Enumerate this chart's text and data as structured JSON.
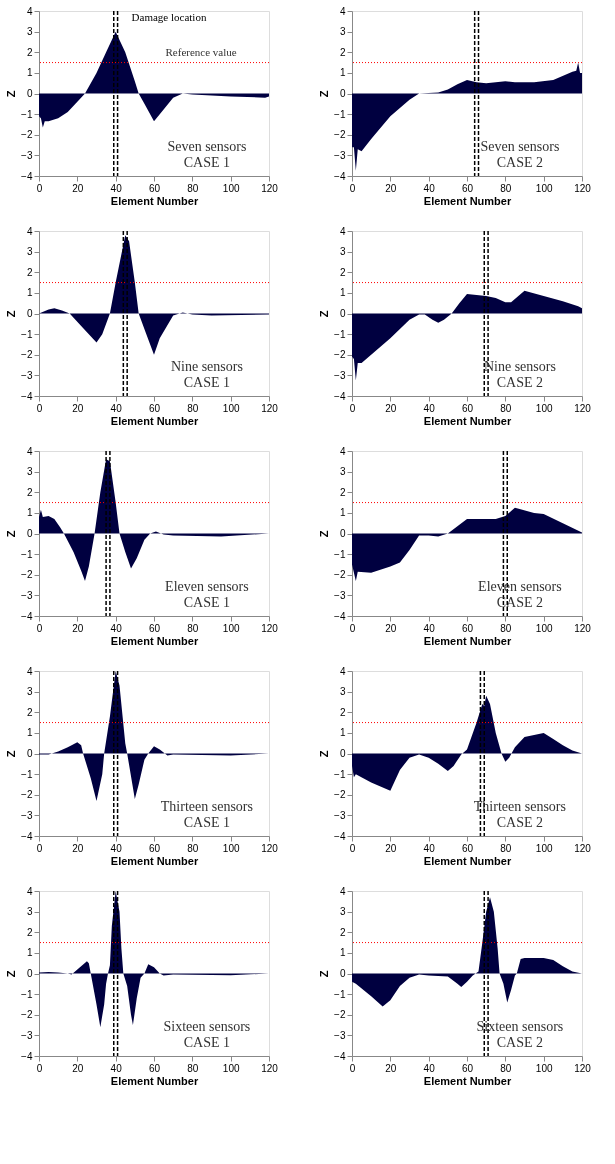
{
  "chart_data": [
    {
      "type": "area",
      "color": "#000040",
      "xlabel": "Element Number",
      "ylabel": "Z",
      "xlim": [
        0,
        120
      ],
      "ylim": [
        -4,
        4
      ],
      "xticks": [
        0,
        20,
        40,
        60,
        80,
        100,
        120
      ],
      "yticks": [
        -4,
        -3,
        -2,
        -1,
        0,
        1,
        2,
        3,
        4
      ],
      "x": [
        0,
        1,
        2,
        3,
        5,
        10,
        15,
        20,
        24,
        30,
        35,
        40,
        45,
        50,
        52,
        55,
        60,
        63,
        70,
        75,
        80,
        100,
        118,
        120
      ],
      "values": [
        -1.1,
        -1.2,
        -1.65,
        -1.35,
        -1.35,
        -1.2,
        -0.9,
        -0.4,
        0,
        1.0,
        2.0,
        3.0,
        2.0,
        0.6,
        0,
        -0.5,
        -1.35,
        -1.0,
        -0.2,
        0,
        -0.05,
        -0.15,
        -0.2,
        -0.15
      ],
      "ref_lines": [
        {
          "axis": "y",
          "value": 1.5,
          "label": "Reference value",
          "color": "#ff0000",
          "line_style": "dotted"
        },
        {
          "axis": "x",
          "value": 39,
          "color": "#000000",
          "line_style": "dashed"
        },
        {
          "axis": "x",
          "value": 41,
          "color": "#000000",
          "line_style": "dashed"
        }
      ],
      "annotations": [
        {
          "text": "Damage location",
          "x": 41,
          "y": 3
        },
        "Seven sensors\nCASE 1"
      ]
    },
    {
      "type": "area",
      "color": "#000040",
      "xlabel": "Element Number",
      "ylabel": "Z",
      "xlim": [
        0,
        120
      ],
      "ylim": [
        -4,
        4
      ],
      "xticks": [
        0,
        20,
        40,
        60,
        80,
        100,
        120
      ],
      "yticks": [
        -4,
        -3,
        -2,
        -1,
        0,
        1,
        2,
        3,
        4
      ],
      "x": [
        0,
        1,
        2,
        3,
        5,
        10,
        20,
        30,
        35,
        45,
        50,
        55,
        60,
        65,
        70,
        80,
        85,
        95,
        105,
        115,
        117,
        118,
        119,
        120
      ],
      "values": [
        -2.6,
        -2.6,
        -3.75,
        -2.7,
        -2.8,
        -2.2,
        -1.1,
        -0.3,
        0,
        0.05,
        0.2,
        0.45,
        0.65,
        0.55,
        0.5,
        0.6,
        0.55,
        0.55,
        0.65,
        1.05,
        1.1,
        1.5,
        1.0,
        1.0
      ],
      "ref_lines": [
        {
          "axis": "y",
          "value": 1.5,
          "color": "#ff0000",
          "line_style": "dotted"
        },
        {
          "axis": "x",
          "value": 64,
          "color": "#000000",
          "line_style": "dashed"
        },
        {
          "axis": "x",
          "value": 66,
          "color": "#000000",
          "line_style": "dashed"
        }
      ],
      "annotations": [
        "Seven sensors\nCASE 2"
      ]
    },
    {
      "type": "area",
      "color": "#000040",
      "xlabel": "Element Number",
      "ylabel": "Z",
      "xlim": [
        0,
        120
      ],
      "ylim": [
        -4,
        4
      ],
      "xticks": [
        0,
        20,
        40,
        60,
        80,
        100,
        120
      ],
      "yticks": [
        -4,
        -3,
        -2,
        -1,
        0,
        1,
        2,
        3,
        4
      ],
      "x": [
        0,
        5,
        8,
        12,
        16,
        22,
        30,
        33,
        37,
        40,
        45,
        47,
        50,
        52,
        56,
        60,
        63,
        70,
        75,
        80,
        90,
        120
      ],
      "values": [
        0,
        0.2,
        0.25,
        0.15,
        0,
        -0.6,
        -1.4,
        -1.0,
        0,
        1.5,
        3.8,
        3.5,
        1.5,
        0,
        -1.0,
        -2.0,
        -1.2,
        -0.1,
        0.05,
        -0.05,
        -0.1,
        -0.05
      ],
      "ref_lines": [
        {
          "axis": "y",
          "value": 1.5,
          "color": "#ff0000",
          "line_style": "dotted"
        },
        {
          "axis": "x",
          "value": 44,
          "color": "#000000",
          "line_style": "dashed"
        },
        {
          "axis": "x",
          "value": 46,
          "color": "#000000",
          "line_style": "dashed"
        }
      ],
      "annotations": [
        "Nine sensors\nCASE 1"
      ]
    },
    {
      "type": "area",
      "color": "#000040",
      "xlabel": "Element Number",
      "ylabel": "Z",
      "xlim": [
        0,
        120
      ],
      "ylim": [
        -4,
        4
      ],
      "xticks": [
        0,
        20,
        40,
        60,
        80,
        100,
        120
      ],
      "yticks": [
        -4,
        -3,
        -2,
        -1,
        0,
        1,
        2,
        3,
        4
      ],
      "x": [
        0,
        1,
        2,
        3,
        5,
        10,
        20,
        30,
        35,
        38,
        42,
        45,
        48,
        52,
        56,
        60,
        70,
        75,
        80,
        83,
        90,
        100,
        110,
        118,
        120
      ],
      "values": [
        -2.1,
        -2.2,
        -3.25,
        -2.4,
        -2.4,
        -2.0,
        -1.2,
        -0.3,
        -0.05,
        -0.05,
        -0.3,
        -0.45,
        -0.3,
        0,
        0.5,
        0.95,
        0.85,
        0.75,
        0.55,
        0.55,
        1.1,
        0.85,
        0.6,
        0.35,
        0.25
      ],
      "ref_lines": [
        {
          "axis": "y",
          "value": 1.5,
          "color": "#ff0000",
          "line_style": "dotted"
        },
        {
          "axis": "x",
          "value": 69,
          "color": "#000000",
          "line_style": "dashed"
        },
        {
          "axis": "x",
          "value": 71,
          "color": "#000000",
          "line_style": "dashed"
        }
      ],
      "annotations": [
        "Nine sensors\nCASE 2"
      ]
    },
    {
      "type": "area",
      "color": "#000040",
      "xlabel": "Element Number",
      "ylabel": "Z",
      "xlim": [
        0,
        120
      ],
      "ylim": [
        -4,
        4
      ],
      "xticks": [
        0,
        20,
        40,
        60,
        80,
        100,
        120
      ],
      "yticks": [
        -4,
        -3,
        -2,
        -1,
        0,
        1,
        2,
        3,
        4
      ],
      "x": [
        0,
        1,
        2,
        5,
        8,
        11,
        13,
        18,
        22,
        24,
        26,
        29,
        32,
        35,
        37,
        40,
        42,
        45,
        48,
        51,
        55,
        58,
        61,
        65,
        70,
        95,
        120
      ],
      "values": [
        0.8,
        1.15,
        0.8,
        0.85,
        0.7,
        0.3,
        0,
        -0.9,
        -1.8,
        -2.3,
        -1.6,
        0,
        2.0,
        3.6,
        3.5,
        1.5,
        0,
        -0.9,
        -1.7,
        -1.2,
        -0.3,
        0,
        0.1,
        -0.05,
        -0.1,
        -0.15,
        0
      ],
      "ref_lines": [
        {
          "axis": "y",
          "value": 1.5,
          "color": "#ff0000",
          "line_style": "dotted"
        },
        {
          "axis": "x",
          "value": 35,
          "color": "#000000",
          "line_style": "dashed"
        },
        {
          "axis": "x",
          "value": 37,
          "color": "#000000",
          "line_style": "dashed"
        }
      ],
      "annotations": [
        "Eleven sensors\nCASE 1"
      ]
    },
    {
      "type": "area",
      "color": "#000040",
      "xlabel": "Element Number",
      "ylabel": "Z",
      "xlim": [
        0,
        120
      ],
      "ylim": [
        -4,
        4
      ],
      "xticks": [
        0,
        20,
        40,
        60,
        80,
        100,
        120
      ],
      "yticks": [
        -4,
        -3,
        -2,
        -1,
        0,
        1,
        2,
        3,
        4
      ],
      "x": [
        0,
        1,
        2,
        3,
        10,
        20,
        25,
        30,
        35,
        40,
        45,
        50,
        55,
        60,
        65,
        75,
        80,
        85,
        95,
        100,
        110,
        120
      ],
      "values": [
        -1.5,
        -1.9,
        -2.3,
        -1.85,
        -1.9,
        -1.6,
        -1.4,
        -0.8,
        -0.1,
        -0.1,
        -0.15,
        0,
        0.35,
        0.7,
        0.7,
        0.7,
        0.85,
        1.25,
        1.0,
        0.95,
        0.5,
        0.05
      ],
      "ref_lines": [
        {
          "axis": "y",
          "value": 1.5,
          "color": "#ff0000",
          "line_style": "dotted"
        },
        {
          "axis": "x",
          "value": 79,
          "color": "#000000",
          "line_style": "dashed"
        },
        {
          "axis": "x",
          "value": 81,
          "color": "#000000",
          "line_style": "dashed"
        }
      ],
      "annotations": [
        "Eleven sensors\nCASE 2"
      ]
    },
    {
      "type": "area",
      "color": "#000040",
      "xlabel": "Element Number",
      "ylabel": "Z",
      "xlim": [
        0,
        120
      ],
      "ylim": [
        -4,
        4
      ],
      "xticks": [
        0,
        20,
        40,
        60,
        80,
        100,
        120
      ],
      "yticks": [
        -4,
        -3,
        -2,
        -1,
        0,
        1,
        2,
        3,
        4
      ],
      "x": [
        0,
        5,
        10,
        15,
        20,
        22,
        23,
        27,
        30,
        33,
        34,
        37,
        40,
        42,
        45,
        46,
        50,
        52,
        55,
        57,
        60,
        63,
        67,
        70,
        100,
        120
      ],
      "values": [
        -0.05,
        -0.05,
        0.1,
        0.3,
        0.55,
        0.4,
        0,
        -1.2,
        -2.3,
        -1.0,
        0,
        1.8,
        4.0,
        3.3,
        0.5,
        0,
        -2.2,
        -1.5,
        -0.3,
        0,
        0.35,
        0.2,
        -0.1,
        -0.05,
        -0.1,
        0
      ],
      "ref_lines": [
        {
          "axis": "y",
          "value": 1.5,
          "color": "#ff0000",
          "line_style": "dotted"
        },
        {
          "axis": "x",
          "value": 39,
          "color": "#000000",
          "line_style": "dashed"
        },
        {
          "axis": "x",
          "value": 41,
          "color": "#000000",
          "line_style": "dashed"
        }
      ],
      "annotations": [
        "Thirteen sensors\nCASE 1"
      ]
    },
    {
      "type": "area",
      "color": "#000040",
      "xlabel": "Element Number",
      "ylabel": "Z",
      "xlim": [
        0,
        120
      ],
      "ylim": [
        -4,
        4
      ],
      "xticks": [
        0,
        20,
        40,
        60,
        80,
        100,
        120
      ],
      "yticks": [
        -4,
        -3,
        -2,
        -1,
        0,
        1,
        2,
        3,
        4
      ],
      "x": [
        0,
        1,
        2,
        10,
        20,
        25,
        30,
        35,
        40,
        45,
        50,
        53,
        57,
        60,
        65,
        68,
        69,
        70,
        72,
        75,
        78,
        80,
        82,
        85,
        90,
        100,
        105,
        110,
        115,
        120
      ],
      "values": [
        -0.6,
        -1.15,
        -1.0,
        -1.4,
        -1.8,
        -0.8,
        -0.2,
        -0.05,
        -0.2,
        -0.5,
        -0.85,
        -0.6,
        -0.05,
        0.2,
        1.5,
        2.4,
        2.3,
        2.8,
        2.4,
        1.0,
        0,
        -0.4,
        -0.2,
        0.3,
        0.8,
        1.0,
        0.7,
        0.4,
        0.15,
        0
      ],
      "ref_lines": [
        {
          "axis": "y",
          "value": 1.5,
          "color": "#ff0000",
          "line_style": "dotted"
        },
        {
          "axis": "x",
          "value": 67,
          "color": "#000000",
          "line_style": "dashed"
        },
        {
          "axis": "x",
          "value": 69,
          "color": "#000000",
          "line_style": "dashed"
        }
      ],
      "annotations": [
        "Thirteen sensors\nCASE 2"
      ]
    },
    {
      "type": "area",
      "color": "#000040",
      "xlabel": "Element Number",
      "ylabel": "Z",
      "xlim": [
        0,
        120
      ],
      "ylim": [
        -4,
        4
      ],
      "xticks": [
        0,
        20,
        40,
        60,
        80,
        100,
        120
      ],
      "yticks": [
        -4,
        -3,
        -2,
        -1,
        0,
        1,
        2,
        3,
        4
      ],
      "x": [
        0,
        5,
        10,
        15,
        17,
        20,
        25,
        26,
        27,
        30,
        32,
        34,
        35,
        36,
        37,
        38,
        40,
        42,
        43,
        44,
        46,
        48,
        49,
        51,
        53,
        55,
        57,
        60,
        63,
        65,
        70,
        100,
        120
      ],
      "values": [
        0.05,
        0.07,
        0.05,
        0,
        -0.05,
        0.2,
        0.6,
        0.5,
        0,
        -1.5,
        -2.6,
        -1.5,
        -0.5,
        0,
        0.4,
        2.3,
        4.0,
        3.0,
        1.2,
        0,
        -0.6,
        -2.0,
        -2.5,
        -1.2,
        -0.2,
        0,
        0.45,
        0.3,
        0,
        -0.1,
        -0.05,
        -0.08,
        0
      ],
      "ref_lines": [
        {
          "axis": "y",
          "value": 1.5,
          "color": "#ff0000",
          "line_style": "dotted"
        },
        {
          "axis": "x",
          "value": 39,
          "color": "#000000",
          "line_style": "dashed"
        },
        {
          "axis": "x",
          "value": 41,
          "color": "#000000",
          "line_style": "dashed"
        }
      ],
      "annotations": [
        "Sixteen sensors\nCASE 1"
      ]
    },
    {
      "type": "area",
      "color": "#000040",
      "xlabel": "Element Number",
      "ylabel": "Z",
      "xlim": [
        0,
        120
      ],
      "ylim": [
        -4,
        4
      ],
      "xticks": [
        0,
        20,
        40,
        60,
        80,
        100,
        120
      ],
      "yticks": [
        -4,
        -3,
        -2,
        -1,
        0,
        1,
        2,
        3,
        4
      ],
      "x": [
        0,
        2,
        10,
        16,
        20,
        25,
        30,
        35,
        40,
        50,
        55,
        57,
        60,
        63,
        66,
        68,
        70,
        72,
        74,
        76,
        77,
        79,
        81,
        83,
        85,
        86,
        88,
        90,
        100,
        105,
        110,
        115,
        120
      ],
      "values": [
        -0.4,
        -0.5,
        -1.1,
        -1.6,
        -1.3,
        -0.6,
        -0.2,
        -0.05,
        -0.1,
        -0.15,
        -0.5,
        -0.65,
        -0.4,
        -0.1,
        0.1,
        1.5,
        3.0,
        3.7,
        3.0,
        1.2,
        0,
        -0.5,
        -1.4,
        -0.8,
        -0.1,
        0,
        0.7,
        0.75,
        0.75,
        0.65,
        0.35,
        0.1,
        0
      ],
      "ref_lines": [
        {
          "axis": "y",
          "value": 1.5,
          "color": "#ff0000",
          "line_style": "dotted"
        },
        {
          "axis": "x",
          "value": 69,
          "color": "#000000",
          "line_style": "dashed"
        },
        {
          "axis": "x",
          "value": 71,
          "color": "#000000",
          "line_style": "dashed"
        }
      ],
      "annotations": [
        "Sixteen sensors\nCASE 2"
      ]
    }
  ]
}
